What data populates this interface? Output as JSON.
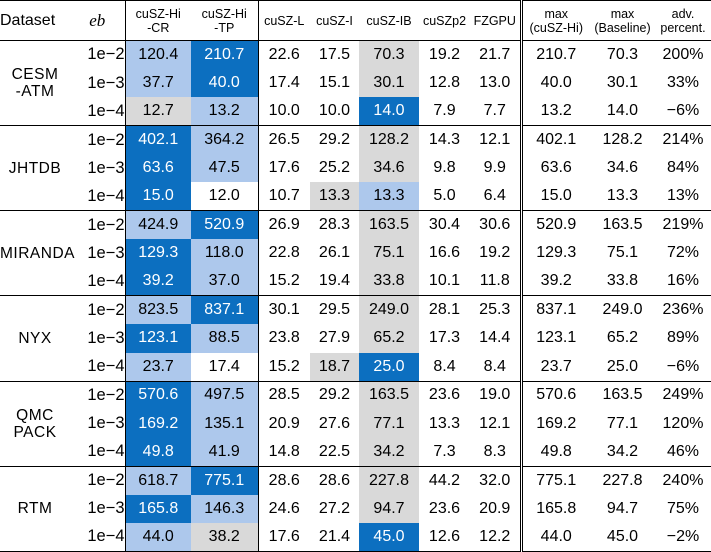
{
  "table": {
    "headers": {
      "dataset": "Dataset",
      "eb": "eb",
      "cols": [
        [
          "cuSZ-Hi",
          "-CR"
        ],
        [
          "cuSZ-Hi",
          "-TP"
        ],
        [
          "cuSZ-L"
        ],
        [
          "cuSZ-I"
        ],
        [
          "cuSZ-IB"
        ],
        [
          "cuSZp2"
        ],
        [
          "FZGPU"
        ],
        [
          "max",
          "(cuSZ-Hi)"
        ],
        [
          "max",
          "(Baseline)"
        ],
        [
          "adv.",
          "percent."
        ]
      ]
    },
    "colors": {
      "best": "#0c6fc0",
      "second": "#adc8ec",
      "baseline_best": "#d9d9d9"
    },
    "datasets": [
      {
        "name": [
          "CESM",
          "-ATM"
        ],
        "rows": [
          {
            "eb": "1e−2",
            "values": [
              "120.4",
              "210.7",
              "22.6",
              "17.5",
              "70.3",
              "19.2",
              "21.7",
              "210.7",
              "70.3",
              "200%"
            ],
            "hl": [
              "second",
              "best",
              "",
              "",
              "baseline_best",
              "",
              "",
              "",
              "",
              ""
            ]
          },
          {
            "eb": "1e−3",
            "values": [
              "37.7",
              "40.0",
              "17.4",
              "15.1",
              "30.1",
              "12.8",
              "13.0",
              "40.0",
              "30.1",
              "33%"
            ],
            "hl": [
              "second",
              "best",
              "",
              "",
              "baseline_best",
              "",
              "",
              "",
              "",
              ""
            ]
          },
          {
            "eb": "1e−4",
            "values": [
              "12.7",
              "13.2",
              "10.0",
              "10.0",
              "14.0",
              "7.9",
              "7.7",
              "13.2",
              "14.0",
              "−6%"
            ],
            "hl": [
              "baseline_best",
              "second",
              "",
              "",
              "best",
              "",
              "",
              "",
              "",
              ""
            ]
          }
        ]
      },
      {
        "name": [
          "JHTDB"
        ],
        "rows": [
          {
            "eb": "1e−2",
            "values": [
              "402.1",
              "364.2",
              "26.5",
              "29.2",
              "128.2",
              "14.3",
              "12.1",
              "402.1",
              "128.2",
              "214%"
            ],
            "hl": [
              "best",
              "second",
              "",
              "",
              "baseline_best",
              "",
              "",
              "",
              "",
              ""
            ]
          },
          {
            "eb": "1e−3",
            "values": [
              "63.6",
              "47.5",
              "17.6",
              "25.2",
              "34.6",
              "9.8",
              "9.9",
              "63.6",
              "34.6",
              "84%"
            ],
            "hl": [
              "best",
              "second",
              "",
              "",
              "baseline_best",
              "",
              "",
              "",
              "",
              ""
            ]
          },
          {
            "eb": "1e−4",
            "values": [
              "15.0",
              "12.0",
              "10.7",
              "13.3",
              "13.3",
              "5.0",
              "6.4",
              "15.0",
              "13.3",
              "13%"
            ],
            "hl": [
              "best",
              "",
              "",
              "baseline_best",
              "second",
              "",
              "",
              "",
              "",
              ""
            ]
          }
        ]
      },
      {
        "name": [
          "MIRANDA"
        ],
        "rows": [
          {
            "eb": "1e−2",
            "values": [
              "424.9",
              "520.9",
              "26.9",
              "28.3",
              "163.5",
              "30.4",
              "30.6",
              "520.9",
              "163.5",
              "219%"
            ],
            "hl": [
              "second",
              "best",
              "",
              "",
              "baseline_best",
              "",
              "",
              "",
              "",
              ""
            ]
          },
          {
            "eb": "1e−3",
            "values": [
              "129.3",
              "118.0",
              "22.8",
              "26.1",
              "75.1",
              "16.6",
              "19.2",
              "129.3",
              "75.1",
              "72%"
            ],
            "hl": [
              "best",
              "second",
              "",
              "",
              "baseline_best",
              "",
              "",
              "",
              "",
              ""
            ]
          },
          {
            "eb": "1e−4",
            "values": [
              "39.2",
              "37.0",
              "15.2",
              "19.4",
              "33.8",
              "10.1",
              "11.8",
              "39.2",
              "33.8",
              "16%"
            ],
            "hl": [
              "best",
              "second",
              "",
              "",
              "baseline_best",
              "",
              "",
              "",
              "",
              ""
            ]
          }
        ]
      },
      {
        "name": [
          "NYX"
        ],
        "rows": [
          {
            "eb": "1e−2",
            "values": [
              "823.5",
              "837.1",
              "30.1",
              "29.5",
              "249.0",
              "28.1",
              "25.3",
              "837.1",
              "249.0",
              "236%"
            ],
            "hl": [
              "second",
              "best",
              "",
              "",
              "baseline_best",
              "",
              "",
              "",
              "",
              ""
            ]
          },
          {
            "eb": "1e−3",
            "values": [
              "123.1",
              "88.5",
              "23.8",
              "27.9",
              "65.2",
              "17.3",
              "14.4",
              "123.1",
              "65.2",
              "89%"
            ],
            "hl": [
              "best",
              "second",
              "",
              "",
              "baseline_best",
              "",
              "",
              "",
              "",
              ""
            ]
          },
          {
            "eb": "1e−4",
            "values": [
              "23.7",
              "17.4",
              "15.2",
              "18.7",
              "25.0",
              "8.4",
              "8.4",
              "23.7",
              "25.0",
              "−6%"
            ],
            "hl": [
              "second",
              "",
              "",
              "baseline_best",
              "best",
              "",
              "",
              "",
              "",
              ""
            ]
          }
        ]
      },
      {
        "name": [
          "QMC",
          "PACK"
        ],
        "rows": [
          {
            "eb": "1e−2",
            "values": [
              "570.6",
              "497.5",
              "28.5",
              "29.2",
              "163.5",
              "23.6",
              "19.0",
              "570.6",
              "163.5",
              "249%"
            ],
            "hl": [
              "best",
              "second",
              "",
              "",
              "baseline_best",
              "",
              "",
              "",
              "",
              ""
            ]
          },
          {
            "eb": "1e−3",
            "values": [
              "169.2",
              "135.1",
              "20.9",
              "27.6",
              "77.1",
              "13.3",
              "12.1",
              "169.2",
              "77.1",
              "120%"
            ],
            "hl": [
              "best",
              "second",
              "",
              "",
              "baseline_best",
              "",
              "",
              "",
              "",
              ""
            ]
          },
          {
            "eb": "1e−4",
            "values": [
              "49.8",
              "41.9",
              "14.8",
              "22.5",
              "34.2",
              "7.3",
              "8.3",
              "49.8",
              "34.2",
              "46%"
            ],
            "hl": [
              "best",
              "second",
              "",
              "",
              "baseline_best",
              "",
              "",
              "",
              "",
              ""
            ]
          }
        ]
      },
      {
        "name": [
          "RTM"
        ],
        "rows": [
          {
            "eb": "1e−2",
            "values": [
              "618.7",
              "775.1",
              "28.6",
              "28.6",
              "227.8",
              "44.2",
              "32.0",
              "775.1",
              "227.8",
              "240%"
            ],
            "hl": [
              "second",
              "best",
              "",
              "",
              "baseline_best",
              "",
              "",
              "",
              "",
              ""
            ]
          },
          {
            "eb": "1e−3",
            "values": [
              "165.8",
              "146.3",
              "24.6",
              "27.2",
              "94.7",
              "23.6",
              "20.9",
              "165.8",
              "94.7",
              "75%"
            ],
            "hl": [
              "best",
              "second",
              "",
              "",
              "baseline_best",
              "",
              "",
              "",
              "",
              ""
            ]
          },
          {
            "eb": "1e−4",
            "values": [
              "44.0",
              "38.2",
              "17.6",
              "21.4",
              "45.0",
              "12.6",
              "12.2",
              "44.0",
              "45.0",
              "−2%"
            ],
            "hl": [
              "second",
              "baseline_best",
              "",
              "",
              "best",
              "",
              "",
              "",
              "",
              ""
            ]
          }
        ]
      }
    ]
  }
}
